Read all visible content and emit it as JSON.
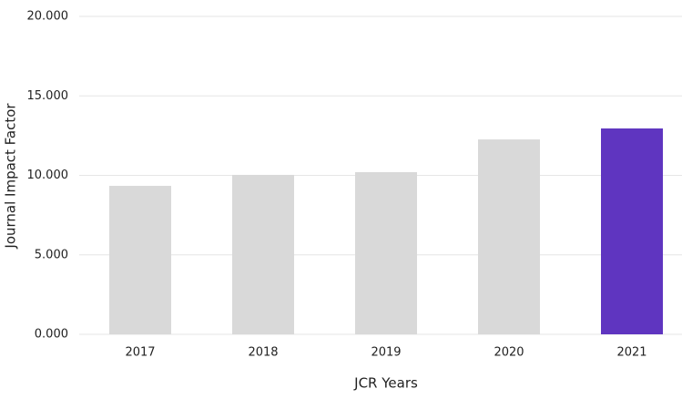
{
  "chart_data": {
    "type": "bar",
    "x_label": "JCR Years",
    "y_label": "Journal Impact Factor",
    "categories": [
      "2017",
      "2018",
      "2019",
      "2020",
      "2021"
    ],
    "values": [
      9.34,
      10.03,
      10.2,
      12.26,
      12.95
    ],
    "colors": [
      "#d9d9d9",
      "#d9d9d9",
      "#d9d9d9",
      "#d9d9d9",
      "#5f35c0"
    ],
    "ylim": [
      0,
      20
    ],
    "yticks": [
      {
        "value": 0,
        "label": "0.000"
      },
      {
        "value": 5,
        "label": "5.000"
      },
      {
        "value": 10,
        "label": "10.000"
      },
      {
        "value": 15,
        "label": "15.000"
      },
      {
        "value": 20,
        "label": "20.000"
      }
    ],
    "grid": true
  }
}
